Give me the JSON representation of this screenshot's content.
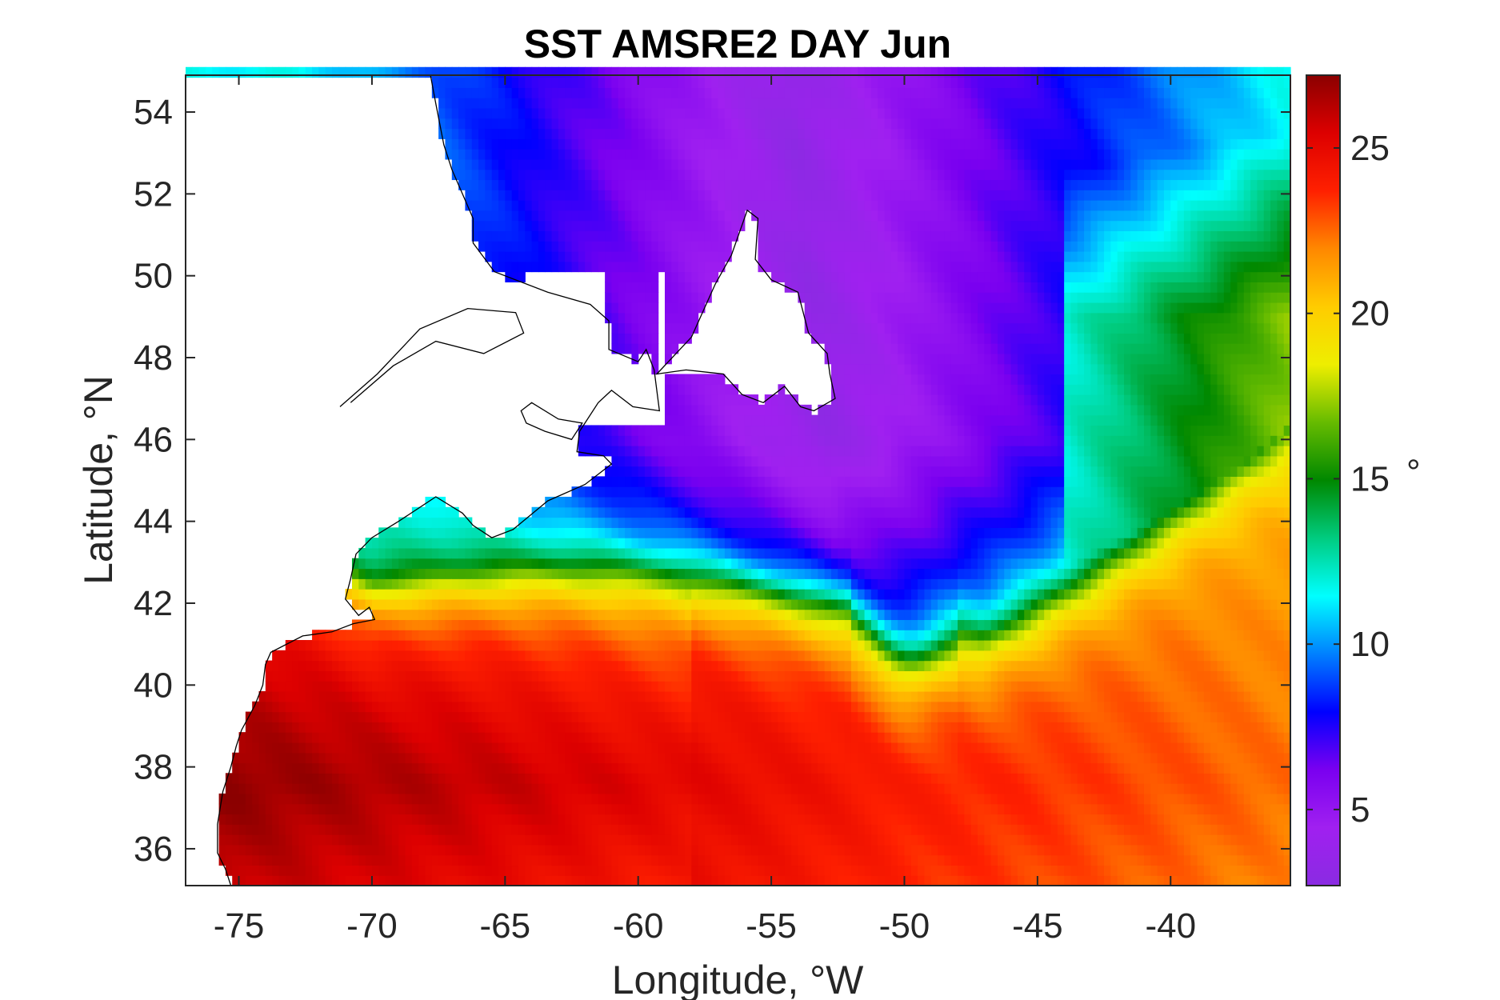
{
  "chart_data": {
    "type": "heatmap",
    "title": "SST AMSRE2 DAY Jun",
    "xlabel": "Longitude, °W",
    "ylabel": "Latitude, °N",
    "xlim": [
      -77,
      -35.5
    ],
    "ylim": [
      35.1,
      54.9
    ],
    "x_ticks": [
      -75,
      -70,
      -65,
      -60,
      -55,
      -50,
      -45,
      -40
    ],
    "y_ticks": [
      36,
      38,
      40,
      42,
      44,
      46,
      48,
      50,
      52,
      54
    ],
    "colorbar": {
      "label": "°",
      "range": [
        2.7,
        27.2
      ],
      "ticks": [
        5,
        10,
        15,
        20,
        25
      ]
    },
    "colormap": [
      "#8a2be2",
      "#a020f0",
      "#7a00f0",
      "#0000ff",
      "#0080ff",
      "#00ffff",
      "#00cc80",
      "#008800",
      "#66bb00",
      "#eeee00",
      "#ffcc00",
      "#ff8800",
      "#ff2000",
      "#dd0000",
      "#8b0000"
    ],
    "grid": false
  }
}
